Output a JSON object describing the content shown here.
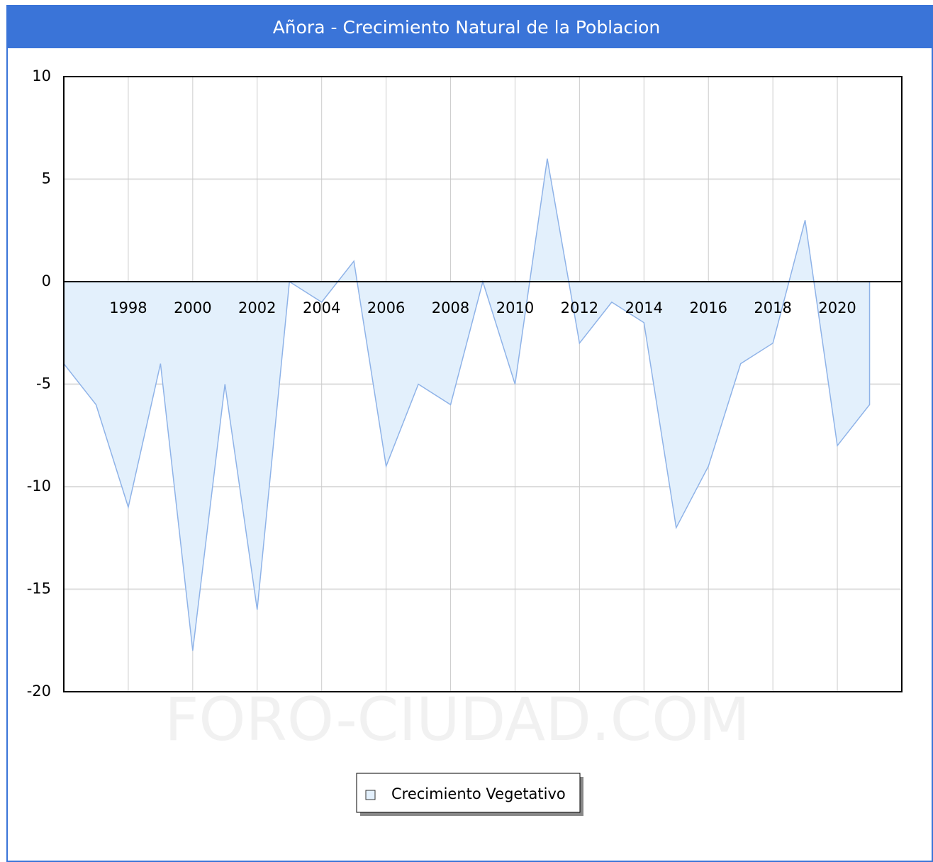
{
  "chart_data": {
    "type": "area",
    "title": "Añora - Crecimiento Natural de la Poblacion",
    "watermark": "FORO-CIUDAD.COM",
    "x": [
      1996,
      1997,
      1998,
      1999,
      2000,
      2001,
      2002,
      2003,
      2004,
      2005,
      2006,
      2007,
      2008,
      2009,
      2010,
      2011,
      2012,
      2013,
      2014,
      2015,
      2016,
      2017,
      2018,
      2019,
      2020,
      2021
    ],
    "series": [
      {
        "name": "Crecimiento Vegetativo",
        "color": "#8fb3e8",
        "fill": "#e3f0fc",
        "values": [
          -4,
          -6,
          -11,
          -4,
          -18,
          -5,
          -16,
          0,
          -1,
          1,
          -9,
          -5,
          -6,
          0,
          -5,
          6,
          -3,
          -1,
          -2,
          -12,
          -9,
          -4,
          -3,
          3,
          -8,
          -6
        ]
      }
    ],
    "xlim": [
      1996,
      2022
    ],
    "xticks": [
      1998,
      2000,
      2002,
      2004,
      2006,
      2008,
      2010,
      2012,
      2014,
      2016,
      2018,
      2020
    ],
    "ylim": [
      -20,
      10
    ],
    "yticks": [
      -20,
      -15,
      -10,
      -5,
      0,
      5,
      10
    ],
    "grid": true
  }
}
